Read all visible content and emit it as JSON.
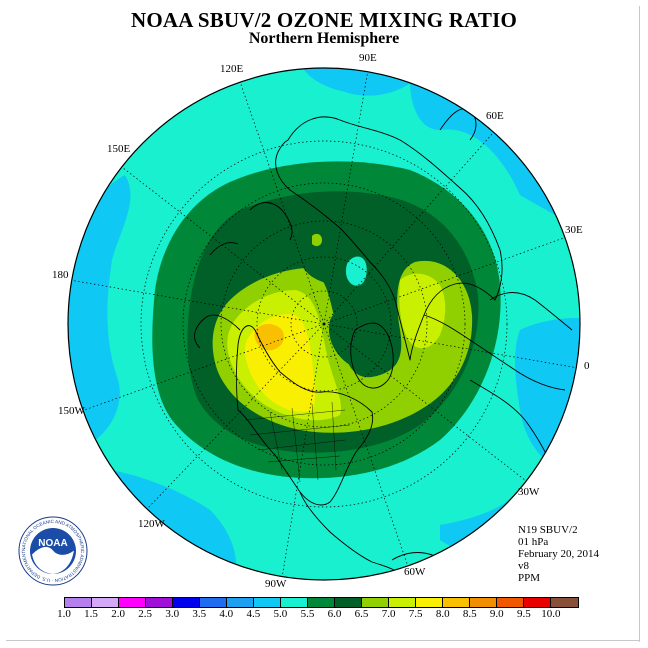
{
  "title": "NOAA SBUV/2 OZONE MIXING RATIO",
  "subtitle": "Northern Hemisphere",
  "longitude_labels": {
    "e90": "90E",
    "e120": "120E",
    "e60": "60E",
    "e150": "150E",
    "e30": "30E",
    "l180": "180",
    "l0": "0",
    "w150": "150W",
    "w30": "30W",
    "w120": "120W",
    "w60": "60W",
    "w90": "90W"
  },
  "info": {
    "satellite": "N19 SBUV/2",
    "level": "01 hPa",
    "date": "February 20, 2014",
    "version": "v8",
    "units": "PPM"
  },
  "colorbar": {
    "ticks": [
      "1.0",
      "1.5",
      "2.0",
      "2.5",
      "3.0",
      "3.5",
      "4.0",
      "4.5",
      "5.0",
      "5.5",
      "6.0",
      "6.5",
      "7.0",
      "7.5",
      "8.0",
      "8.5",
      "9.0",
      "9.5",
      "10.0"
    ],
    "colors": [
      "#b580ee",
      "#d4a8f6",
      "#ff00ff",
      "#a010d8",
      "#0000ee",
      "#1e6cf0",
      "#1ea0f0",
      "#10c8f4",
      "#18f0d0",
      "#008838",
      "#006028",
      "#90d000",
      "#c8f000",
      "#f8f000",
      "#f8c000",
      "#f09000",
      "#f05800",
      "#e80000",
      "#885038"
    ]
  },
  "logo": {
    "text": "NOAA",
    "ring_text": "NATIONAL OCEANIC AND ATMOSPHERIC ADMINISTRATION · U.S. DEPARTMENT OF COMMERCE"
  }
}
